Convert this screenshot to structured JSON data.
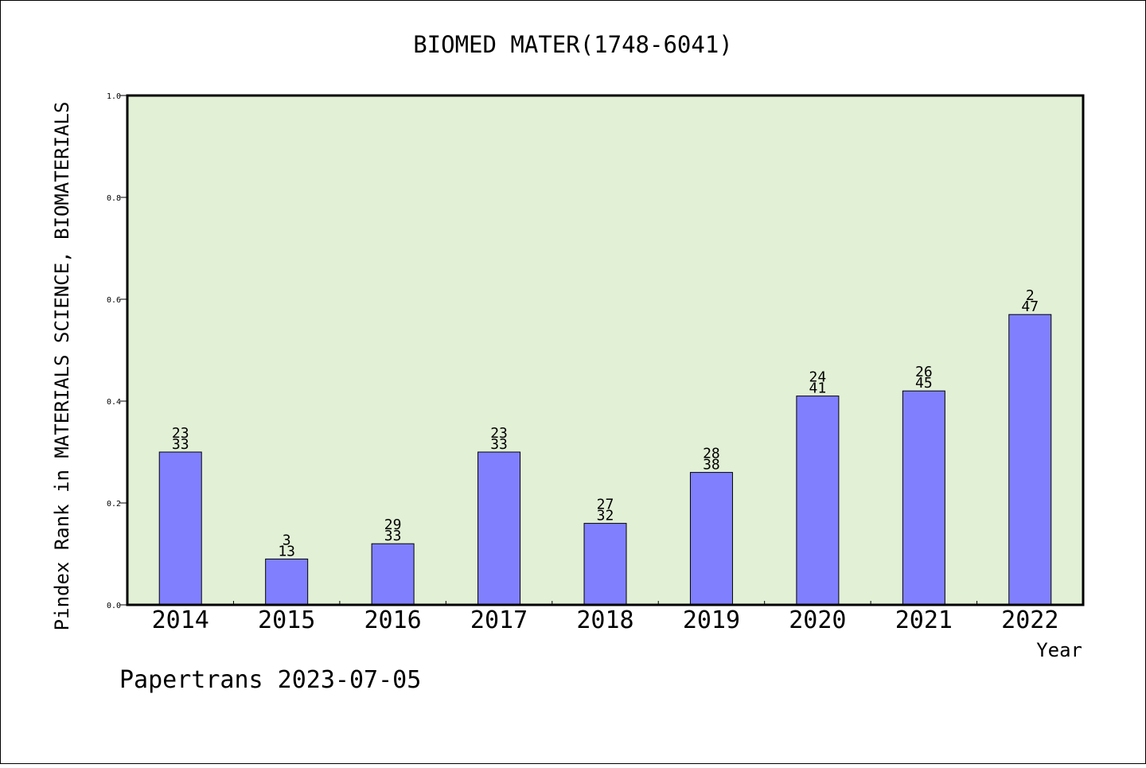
{
  "colors": {
    "plot_background": "#e2f0d6",
    "bar_fill": "#8080ff",
    "bar_stroke": "#000000",
    "frame": "#000000"
  },
  "footer": "Papertrans 2023-07-05",
  "chart_data": {
    "type": "bar",
    "title": "BIOMED MATER(1748-6041)",
    "xlabel": "Year",
    "ylabel": "Pindex Rank in MATERIALS SCIENCE, BIOMATERIALS",
    "ylim": [
      0,
      1
    ],
    "yticks": [
      "0.0",
      "0.2",
      "0.4",
      "0.6",
      "0.8",
      "1.0"
    ],
    "grid": false,
    "categories": [
      "2014",
      "2015",
      "2016",
      "2017",
      "2018",
      "2019",
      "2020",
      "2021",
      "2022"
    ],
    "values": [
      0.3,
      0.09,
      0.12,
      0.3,
      0.16,
      0.26,
      0.41,
      0.42,
      0.57
    ],
    "labels_top": [
      "23",
      "3",
      "29",
      "23",
      "27",
      "28",
      "24",
      "26",
      "2"
    ],
    "labels_bottom": [
      "33",
      "13",
      "33",
      "33",
      "32",
      "38",
      "41",
      "45",
      "47"
    ]
  }
}
